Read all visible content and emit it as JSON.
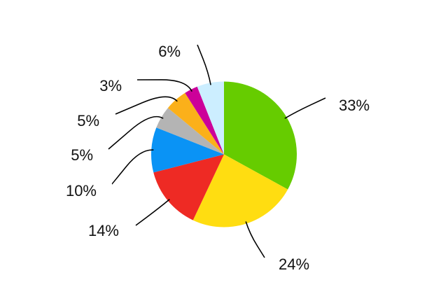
{
  "chart_data": {
    "type": "pie",
    "start": "top",
    "direction": "clockwise",
    "slices": [
      {
        "label": "33%",
        "value": 33,
        "color": "#66cc00"
      },
      {
        "label": "24%",
        "value": 24,
        "color": "#ffdd11"
      },
      {
        "label": "14%",
        "value": 14,
        "color": "#ee2a24"
      },
      {
        "label": "10%",
        "value": 10,
        "color": "#0a93f5"
      },
      {
        "label": "5%",
        "value": 5,
        "color": "#b4b4b4"
      },
      {
        "label": "5%",
        "value": 5,
        "color": "#fbb01a"
      },
      {
        "label": "3%",
        "value": 3,
        "color": "#cc0099"
      },
      {
        "label": "6%",
        "value": 6,
        "color": "#cceeff"
      }
    ]
  }
}
